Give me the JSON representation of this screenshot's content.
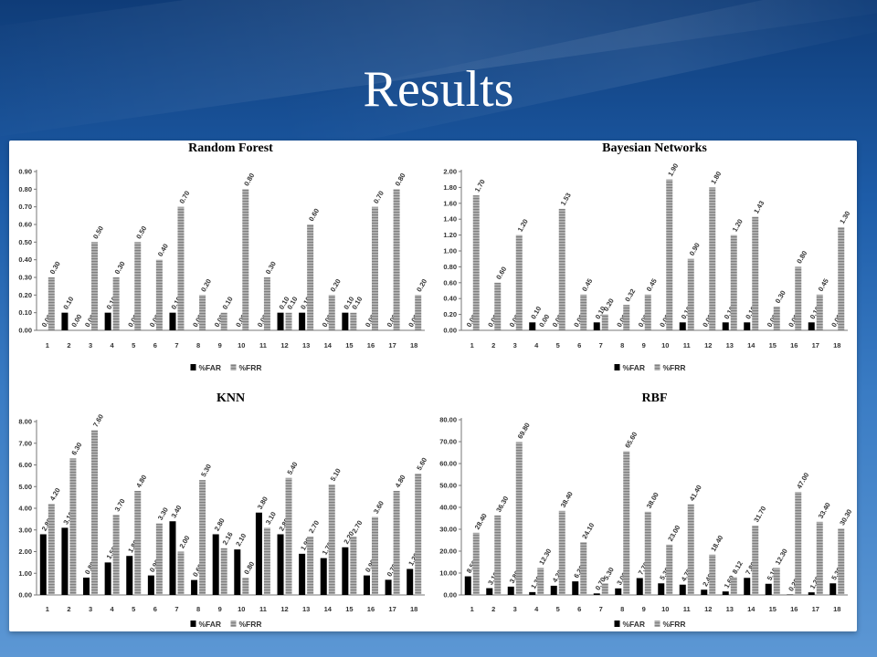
{
  "slide": {
    "title": "Results"
  },
  "theme": {
    "far_color": "#000000",
    "frr_color": "#a9a9a9",
    "frr_stripe": "#7a7a7a"
  },
  "chart_data": [
    {
      "type": "bar",
      "title": "Random Forest",
      "categories": [
        "1",
        "2",
        "3",
        "4",
        "5",
        "6",
        "7",
        "8",
        "9",
        "10",
        "11",
        "12",
        "13",
        "14",
        "15",
        "16",
        "17",
        "18"
      ],
      "series": [
        {
          "name": "%FAR",
          "values": [
            0,
            0.1,
            0,
            0.1,
            0,
            0,
            0.1,
            0,
            0,
            0,
            0,
            0.1,
            0.1,
            0,
            0.1,
            0,
            0,
            0
          ]
        },
        {
          "name": "%FRR",
          "values": [
            0.3,
            0,
            0.5,
            0.3,
            0.5,
            0.4,
            0.7,
            0.2,
            0.1,
            0.8,
            0.3,
            0.1,
            0.6,
            0.2,
            0.1,
            0.7,
            0.8,
            0.2
          ]
        }
      ],
      "labels": [
        [
          "0.00",
          "0.10",
          "0.00",
          "0.10",
          "0.00",
          "0.00",
          "0.10",
          "0.00",
          "0.00",
          "0.00",
          "0.00",
          "0.10",
          "0.10",
          "0.00",
          "0.10",
          "0.00",
          "0.00",
          "0.00"
        ],
        [
          "0.30",
          "0.00",
          "0.50",
          "0.30",
          "0.50",
          "0.40",
          "0.70",
          "0.20",
          "0.10",
          "0.80",
          "0.30",
          "0.10",
          "0.60",
          "0.20",
          "0.10",
          "0.70",
          "0.80",
          "0.20"
        ]
      ],
      "ylim": [
        0,
        0.9
      ],
      "yticks": [
        "0.00",
        "0.10",
        "0.20",
        "0.30",
        "0.40",
        "0.50",
        "0.60",
        "0.70",
        "0.80",
        "0.90"
      ],
      "legend": "bottom"
    },
    {
      "type": "bar",
      "title": "Bayesian Networks",
      "categories": [
        "1",
        "2",
        "3",
        "4",
        "5",
        "6",
        "7",
        "8",
        "9",
        "10",
        "11",
        "12",
        "13",
        "14",
        "15",
        "16",
        "17",
        "18"
      ],
      "series": [
        {
          "name": "%FAR",
          "values": [
            0,
            0,
            0,
            0.1,
            0,
            0,
            0.1,
            0,
            0,
            0,
            0.1,
            0,
            0.1,
            0.1,
            0,
            0,
            0.1,
            0
          ]
        },
        {
          "name": "%FRR",
          "values": [
            1.7,
            0.6,
            1.2,
            0,
            1.53,
            0.45,
            0.2,
            0.32,
            0.45,
            1.9,
            0.9,
            1.8,
            1.2,
            1.43,
            0.3,
            0.8,
            0.45,
            1.3
          ]
        }
      ],
      "labels": [
        [
          "0.00",
          "0.00",
          "0.00",
          "0.10",
          "0.00",
          "0.00",
          "0.10",
          "0.00",
          "0.00",
          "0.00",
          "0.10",
          "0.00",
          "0.10",
          "0.10",
          "0.00",
          "0.00",
          "0.10",
          "0.00"
        ],
        [
          "1.70",
          "0.60",
          "1.20",
          "0.00",
          "1.53",
          "0.45",
          "0.20",
          "0.32",
          "0.45",
          "1.90",
          "0.90",
          "1.80",
          "1.20",
          "1.43",
          "0.30",
          "0.80",
          "0.45",
          "1.30"
        ]
      ],
      "ylim": [
        0,
        2.0
      ],
      "yticks": [
        "0.00",
        "0.20",
        "0.40",
        "0.60",
        "0.80",
        "1.00",
        "1.20",
        "1.40",
        "1.60",
        "1.80",
        "2.00"
      ],
      "legend": "bottom"
    },
    {
      "type": "bar",
      "title": "KNN",
      "categories": [
        "1",
        "2",
        "3",
        "4",
        "5",
        "6",
        "7",
        "8",
        "9",
        "10",
        "11",
        "12",
        "13",
        "14",
        "15",
        "16",
        "17",
        "18"
      ],
      "series": [
        {
          "name": "%FAR",
          "values": [
            2.8,
            3.1,
            0.8,
            1.5,
            1.8,
            0.9,
            3.4,
            0.69,
            2.8,
            2.1,
            3.8,
            2.8,
            1.9,
            1.7,
            2.2,
            0.9,
            0.7,
            1.2
          ]
        },
        {
          "name": "%FRR",
          "values": [
            4.2,
            6.3,
            7.6,
            3.7,
            4.8,
            3.3,
            2.0,
            5.3,
            2.16,
            0.8,
            3.1,
            5.4,
            2.7,
            5.1,
            2.7,
            3.6,
            4.8,
            5.6
          ]
        }
      ],
      "labels": [
        [
          "2.80",
          "3.10",
          "0.80",
          "1.50",
          "1.80",
          "0.90",
          "3.40",
          "0.69",
          "2.80",
          "2.10",
          "3.80",
          "2.80",
          "1.90",
          "1.70",
          "2.20",
          "0.90",
          "0.70",
          "1.20"
        ],
        [
          "4.20",
          "6.30",
          "7.60",
          "3.70",
          "4.80",
          "3.30",
          "2.00",
          "5.30",
          "2.16",
          "0.80",
          "3.10",
          "5.40",
          "2.70",
          "5.10",
          "2.70",
          "3.60",
          "4.80",
          "5.60"
        ]
      ],
      "ylim": [
        0,
        8.0
      ],
      "yticks": [
        "0.00",
        "1.00",
        "2.00",
        "3.00",
        "4.00",
        "5.00",
        "6.00",
        "7.00",
        "8.00"
      ],
      "legend": "bottom"
    },
    {
      "type": "bar",
      "title": "RBF",
      "categories": [
        "1",
        "2",
        "3",
        "4",
        "5",
        "6",
        "7",
        "8",
        "9",
        "10",
        "11",
        "12",
        "13",
        "14",
        "15",
        "16",
        "17",
        "18"
      ],
      "series": [
        {
          "name": "%FAR",
          "values": [
            8.5,
            3.1,
            3.8,
            1.3,
            4.2,
            6.2,
            0.7,
            3.0,
            7.7,
            5.3,
            4.7,
            2.4,
            1.6,
            7.8,
            5.1,
            0.2,
            1.2,
            5.3
          ]
        },
        {
          "name": "%FRR",
          "values": [
            28.4,
            36.3,
            69.8,
            12.3,
            38.4,
            24.1,
            5.3,
            65.6,
            38.0,
            23.0,
            41.4,
            18.4,
            8.12,
            31.7,
            12.3,
            47.0,
            33.4,
            30.3
          ]
        }
      ],
      "labels": [
        [
          "8.50",
          "3.10",
          "3.80",
          "1.30",
          "4.20",
          "6.20",
          "0.70",
          "3.00",
          "7.70",
          "5.30",
          "4.70",
          "2.40",
          "1.60",
          "7.80",
          "5.10",
          "0.20",
          "1.20",
          "5.30"
        ],
        [
          "28.40",
          "36.30",
          "69.80",
          "12.30",
          "38.40",
          "24.10",
          "5.30",
          "65.60",
          "38.00",
          "23.00",
          "41.40",
          "18.40",
          "8.12",
          "31.70",
          "12.30",
          "47.00",
          "33.40",
          "30.30"
        ]
      ],
      "ylim": [
        0,
        80
      ],
      "yticks": [
        "0.00",
        "10.00",
        "20.00",
        "30.00",
        "40.00",
        "50.00",
        "60.00",
        "70.00",
        "80.00"
      ],
      "legend": "bottom"
    }
  ]
}
